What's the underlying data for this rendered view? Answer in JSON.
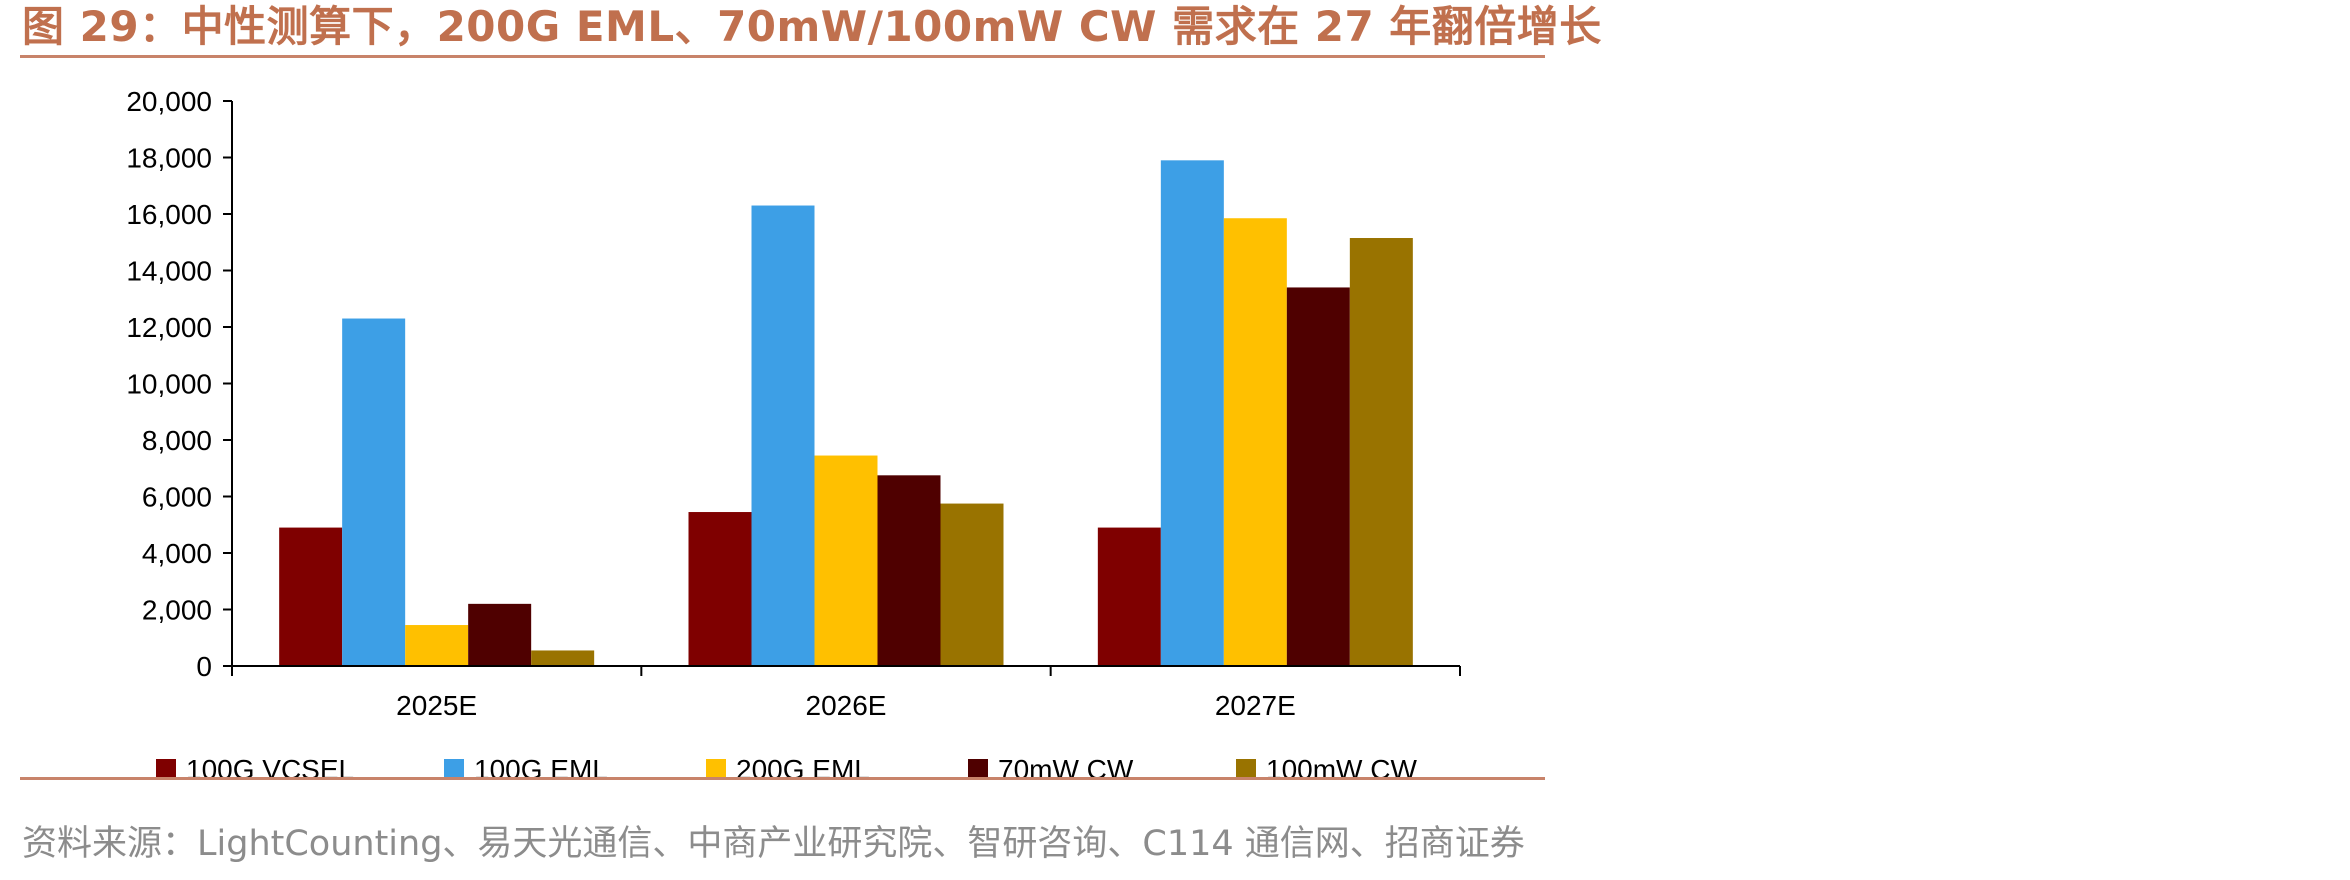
{
  "figure": {
    "title": "图 29：中性测算下，200G EML、70mW/100mW CW 需求在 27 年翻倍增长",
    "source": "资料来源：LightCounting、易天光通信、中商产业研究院、智研咨询、C114 通信网、招商证券"
  },
  "chart_data": {
    "type": "bar",
    "title": "",
    "xlabel": "",
    "ylabel": "",
    "categories": [
      "2025E",
      "2026E",
      "2027E"
    ],
    "ylim": [
      0,
      20000
    ],
    "yticks": [
      0,
      2000,
      4000,
      6000,
      8000,
      10000,
      12000,
      14000,
      16000,
      18000,
      20000
    ],
    "ytick_labels": [
      "0",
      "2,000",
      "4,000",
      "6,000",
      "8,000",
      "10,000",
      "12,000",
      "14,000",
      "16,000",
      "18,000",
      "20,000"
    ],
    "grid": false,
    "legend_position": "bottom",
    "series": [
      {
        "name": "100G VCSEL",
        "color": "#7f0000",
        "values": [
          4900,
          5450,
          4900
        ]
      },
      {
        "name": "100G EML",
        "color": "#3d9fe6",
        "values": [
          12300,
          16300,
          17900
        ]
      },
      {
        "name": "200G EML",
        "color": "#ffc000",
        "values": [
          1450,
          7450,
          15850
        ]
      },
      {
        "name": "70mW CW",
        "color": "#4f0000",
        "values": [
          2200,
          6750,
          13400
        ]
      },
      {
        "name": "100mW CW",
        "color": "#997300",
        "values": [
          550,
          5750,
          15150
        ]
      }
    ]
  }
}
